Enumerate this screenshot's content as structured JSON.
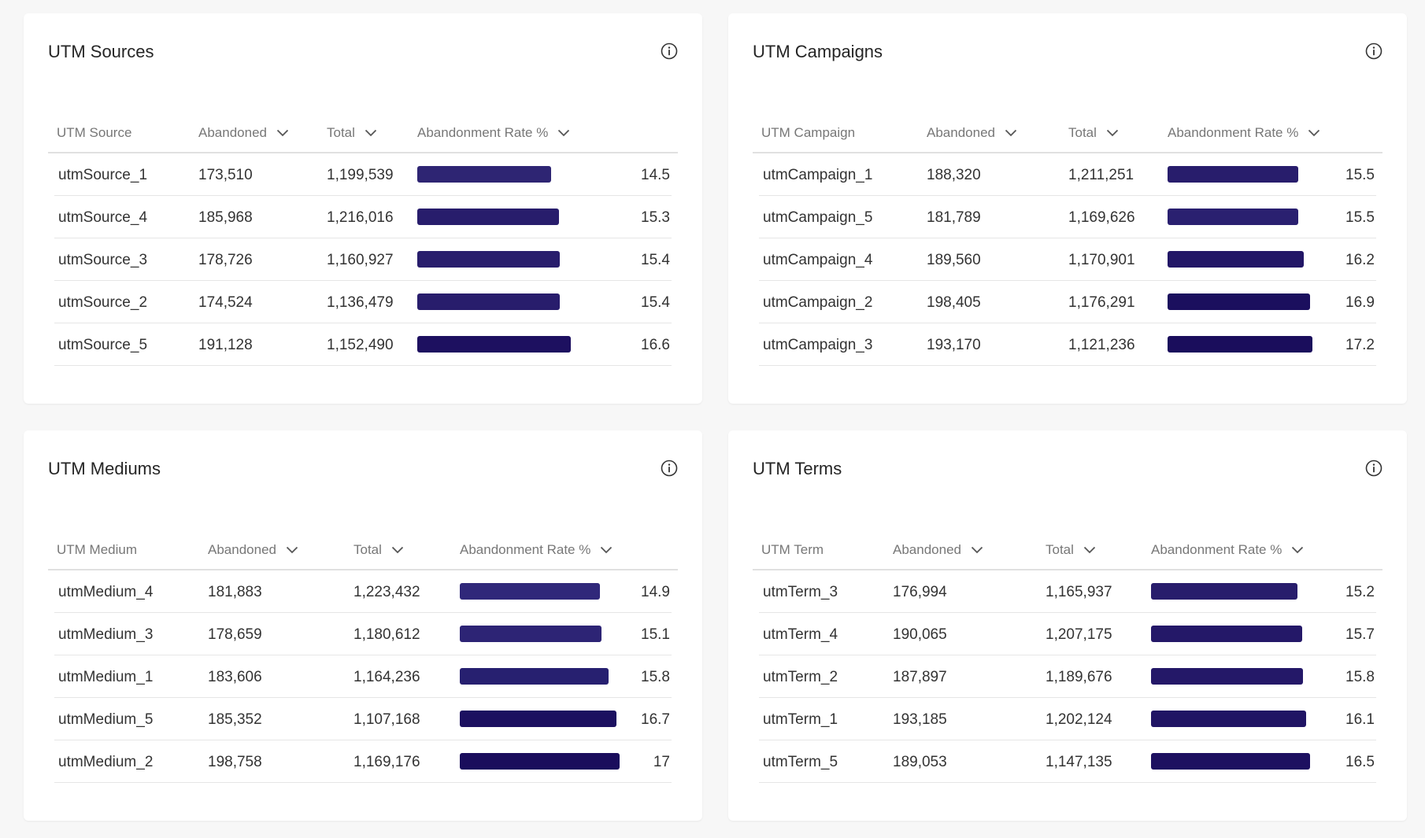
{
  "panels": [
    {
      "title": "UTM Sources",
      "columns": {
        "name": "UTM Source",
        "abandoned": "Abandoned",
        "total": "Total",
        "rate": "Abandonment Rate %"
      },
      "rows": [
        {
          "name": "utmSource_1",
          "abandoned": "173,510",
          "total": "1,199,539",
          "rate": "14.5",
          "rate_value": 14.5,
          "color": "#2e2573"
        },
        {
          "name": "utmSource_4",
          "abandoned": "185,968",
          "total": "1,216,016",
          "rate": "15.3",
          "rate_value": 15.3,
          "color": "#281d6c"
        },
        {
          "name": "utmSource_3",
          "abandoned": "178,726",
          "total": "1,160,927",
          "rate": "15.4",
          "rate_value": 15.4,
          "color": "#281d6c"
        },
        {
          "name": "utmSource_2",
          "abandoned": "174,524",
          "total": "1,136,479",
          "rate": "15.4",
          "rate_value": 15.4,
          "color": "#281d6c"
        },
        {
          "name": "utmSource_5",
          "abandoned": "191,128",
          "total": "1,152,490",
          "rate": "16.6",
          "rate_value": 16.6,
          "color": "#1d1060"
        }
      ]
    },
    {
      "title": "UTM Campaigns",
      "columns": {
        "name": "UTM Campaign",
        "abandoned": "Abandoned",
        "total": "Total",
        "rate": "Abandonment Rate %"
      },
      "rows": [
        {
          "name": "utmCampaign_1",
          "abandoned": "188,320",
          "total": "1,211,251",
          "rate": "15.5",
          "rate_value": 15.5,
          "color": "#281d6c"
        },
        {
          "name": "utmCampaign_5",
          "abandoned": "181,789",
          "total": "1,169,626",
          "rate": "15.5",
          "rate_value": 15.5,
          "color": "#2a2070"
        },
        {
          "name": "utmCampaign_4",
          "abandoned": "189,560",
          "total": "1,170,901",
          "rate": "16.2",
          "rate_value": 16.2,
          "color": "#221666"
        },
        {
          "name": "utmCampaign_2",
          "abandoned": "198,405",
          "total": "1,176,291",
          "rate": "16.9",
          "rate_value": 16.9,
          "color": "#1b0f5e"
        },
        {
          "name": "utmCampaign_3",
          "abandoned": "193,170",
          "total": "1,121,236",
          "rate": "17.2",
          "rate_value": 17.2,
          "color": "#1a0d5c"
        }
      ]
    },
    {
      "title": "UTM Mediums",
      "columns": {
        "name": "UTM Medium",
        "abandoned": "Abandoned",
        "total": "Total",
        "rate": "Abandonment Rate %"
      },
      "rows": [
        {
          "name": "utmMedium_4",
          "abandoned": "181,883",
          "total": "1,223,432",
          "rate": "14.9",
          "rate_value": 14.9,
          "color": "#30287a"
        },
        {
          "name": "utmMedium_3",
          "abandoned": "178,659",
          "total": "1,180,612",
          "rate": "15.1",
          "rate_value": 15.1,
          "color": "#2d2475"
        },
        {
          "name": "utmMedium_1",
          "abandoned": "183,606",
          "total": "1,164,236",
          "rate": "15.8",
          "rate_value": 15.8,
          "color": "#272070"
        },
        {
          "name": "utmMedium_5",
          "abandoned": "185,352",
          "total": "1,107,168",
          "rate": "16.7",
          "rate_value": 16.7,
          "color": "#1c1060"
        },
        {
          "name": "utmMedium_2",
          "abandoned": "198,758",
          "total": "1,169,176",
          "rate": "17",
          "rate_value": 17.0,
          "color": "#1a0d5c"
        }
      ]
    },
    {
      "title": "UTM Terms",
      "columns": {
        "name": "UTM Term",
        "abandoned": "Abandoned",
        "total": "Total",
        "rate": "Abandonment Rate %"
      },
      "rows": [
        {
          "name": "utmTerm_3",
          "abandoned": "176,994",
          "total": "1,165,937",
          "rate": "15.2",
          "rate_value": 15.2,
          "color": "#281d6c"
        },
        {
          "name": "utmTerm_4",
          "abandoned": "190,065",
          "total": "1,207,175",
          "rate": "15.7",
          "rate_value": 15.7,
          "color": "#241868"
        },
        {
          "name": "utmTerm_2",
          "abandoned": "187,897",
          "total": "1,189,676",
          "rate": "15.8",
          "rate_value": 15.8,
          "color": "#241868"
        },
        {
          "name": "utmTerm_1",
          "abandoned": "193,185",
          "total": "1,202,124",
          "rate": "16.1",
          "rate_value": 16.1,
          "color": "#201464"
        },
        {
          "name": "utmTerm_5",
          "abandoned": "189,053",
          "total": "1,147,135",
          "rate": "16.5",
          "rate_value": 16.5,
          "color": "#1d1060"
        }
      ]
    }
  ],
  "icons": {
    "info": "info-circle-icon",
    "sort": "chevron-down-icon"
  }
}
